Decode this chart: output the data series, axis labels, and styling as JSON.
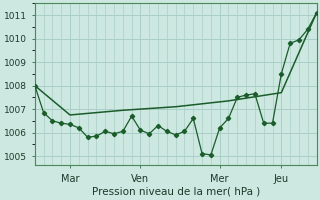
{
  "bg_color": "#cce8e0",
  "grid_color": "#aacfc8",
  "line_color": "#1a5c2a",
  "xlabel": "Pression niveau de la mer( hPa )",
  "ylim": [
    1004.6,
    1011.5
  ],
  "yticks": [
    1005,
    1006,
    1007,
    1008,
    1009,
    1010,
    1011
  ],
  "xlim": [
    0,
    32
  ],
  "xtick_positions": [
    4,
    12,
    21,
    28
  ],
  "xtick_labels": [
    "Mar",
    "Ven",
    "Mer",
    "Jeu"
  ],
  "line1_x": [
    0,
    1,
    2,
    3,
    4,
    5,
    6,
    7,
    8,
    9,
    10,
    11,
    12,
    13,
    14,
    15,
    16,
    17,
    18,
    19,
    20,
    21,
    22,
    23,
    24,
    25,
    26,
    27,
    28,
    29,
    30,
    31,
    32
  ],
  "line1_y": [
    1008.0,
    1006.85,
    1006.5,
    1006.4,
    1006.35,
    1006.2,
    1005.8,
    1005.85,
    1006.05,
    1005.95,
    1006.05,
    1006.7,
    1006.1,
    1005.95,
    1006.3,
    1006.05,
    1005.9,
    1006.05,
    1006.6,
    1005.1,
    1005.05,
    1006.2,
    1006.6,
    1007.5,
    1007.6,
    1007.65,
    1006.4,
    1006.4,
    1008.5,
    1009.8,
    1009.95,
    1010.4,
    1011.1
  ],
  "line2_x": [
    0,
    4,
    10,
    16,
    22,
    28,
    32
  ],
  "line2_y": [
    1008.0,
    1006.75,
    1006.95,
    1007.1,
    1007.35,
    1007.7,
    1011.1
  ]
}
